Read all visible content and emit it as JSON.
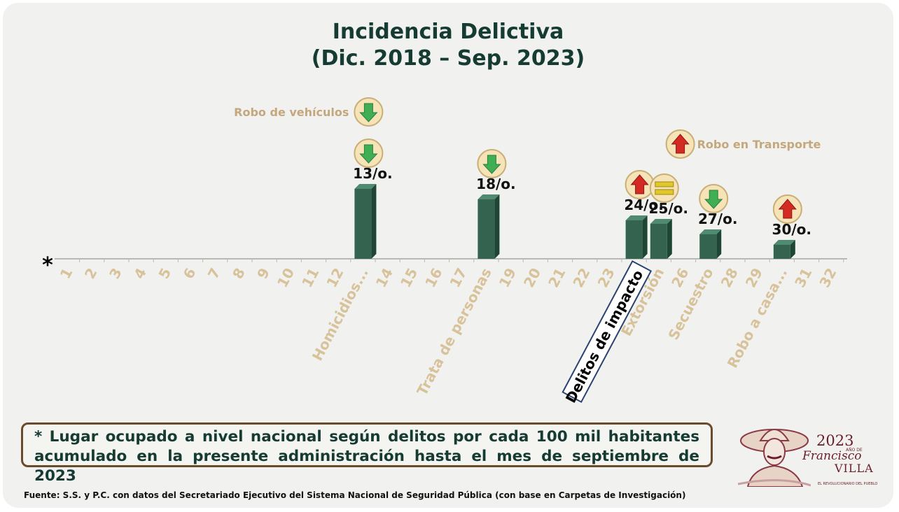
{
  "title_line1": "Incidencia Delictiva",
  "title_line2": "(Dic. 2018 – Sep. 2023)",
  "chart_data": {
    "type": "bar",
    "axis_marker": "*",
    "categories": [
      "1",
      "2",
      "3",
      "4",
      "5",
      "6",
      "7",
      "8",
      "9",
      "10",
      "11",
      "12",
      "Homicidios...",
      "14",
      "15",
      "16",
      "17",
      "Trata de personas",
      "19",
      "20",
      "21",
      "22",
      "23",
      "Delitos de impacto",
      "Extorsión",
      "26",
      "Secuestro",
      "28",
      "29",
      "Robo a casa...",
      "31",
      "32"
    ],
    "values": [
      0,
      0,
      0,
      0,
      0,
      0,
      0,
      0,
      0,
      0,
      0,
      0,
      20,
      0,
      0,
      0,
      0,
      17,
      0,
      0,
      0,
      0,
      0,
      11,
      10,
      0,
      7,
      0,
      0,
      4,
      0,
      0
    ],
    "y_range": [
      0,
      24
    ],
    "bar_color": "#346350",
    "highlighted_category": "Delitos de impacto",
    "rank_labels": [
      {
        "category": "Homicidios...",
        "text": "13/o.",
        "trend": "down"
      },
      {
        "category": "Trata de personas",
        "text": "18/o.",
        "trend": "down"
      },
      {
        "category": "Delitos de impacto",
        "text": "24/o.",
        "trend": "up"
      },
      {
        "category": "Extorsión",
        "text": "25/o.",
        "trend": "equal"
      },
      {
        "category": "Secuestro",
        "text": "27/o.",
        "trend": "down"
      },
      {
        "category": "Robo a casa...",
        "text": "30/o.",
        "trend": "up"
      }
    ],
    "callouts": [
      {
        "category": "Homicidios...",
        "text": "Robo de vehículos",
        "trend": "down",
        "side": "left"
      },
      {
        "category": "Delitos de impacto",
        "text": "Robo en Transporte",
        "trend": "up",
        "side": "right"
      }
    ],
    "grid": false
  },
  "colors": {
    "title": "#163b33",
    "tick_label": "#d8c29a",
    "callout_text": "#c4a77c",
    "trend_down": "#3fae54",
    "trend_up": "#d42a24",
    "trend_equal": "#e2c72b",
    "note_border": "#6a4c2d"
  },
  "note": "* Lugar ocupado a nivel nacional según delitos por cada 100 mil habitantes acumulado en la presente administración hasta el mes de septiembre de 2023",
  "source": "Fuente: S.S. y P.C. con datos del Secretariado Ejecutivo del Sistema Nacional de Seguridad Pública (con base en Carpetas de Investigación)",
  "logo": {
    "year": "2023",
    "subtitle": "AÑO DE",
    "name_line1": "Francisco",
    "name_line2": "VILLA",
    "tagline": "EL REVOLUCIONARIO DEL PUEBLO"
  }
}
